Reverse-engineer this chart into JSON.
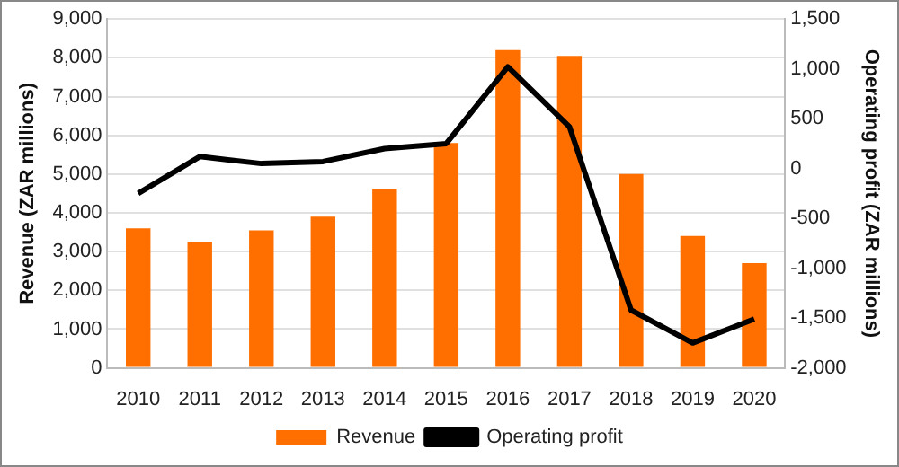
{
  "chart_data": {
    "type": "bar",
    "categories": [
      "2010",
      "2011",
      "2012",
      "2013",
      "2014",
      "2015",
      "2016",
      "2017",
      "2018",
      "2019",
      "2020"
    ],
    "series": [
      {
        "name": "Revenue",
        "color": "#ff6f00",
        "values": [
          3600,
          3250,
          3550,
          3900,
          4600,
          5800,
          8200,
          8050,
          5000,
          3400,
          2700
        ]
      },
      {
        "name": "Operating profit",
        "type": "line",
        "axis": "y2",
        "color": "#000000",
        "values": [
          -250,
          120,
          50,
          70,
          200,
          250,
          1020,
          420,
          -1420,
          -1750,
          -1510
        ]
      }
    ],
    "ylabel": "Revenue (ZAR millions)",
    "y2label": "Operating profit (ZAR millions)",
    "ylim": [
      0,
      9000
    ],
    "yticks": [
      0,
      {
        "value": 1000,
        "label": "1,000"
      },
      {
        "value": 2000,
        "label": "2,000"
      },
      {
        "value": 3000,
        "label": "3,000"
      },
      {
        "value": 4000,
        "label": "4,000"
      },
      {
        "value": 5000,
        "label": "5,000"
      },
      {
        "value": 6000,
        "label": "6,000"
      },
      {
        "value": 7000,
        "label": "7,000"
      },
      {
        "value": 8000,
        "label": "8,000"
      },
      {
        "value": 9000,
        "label": "9,000"
      }
    ],
    "y2lim": [
      -2000,
      1500
    ],
    "y2ticks": [
      {
        "value": -2000,
        "label": "-2,000"
      },
      {
        "value": -1500,
        "label": "-1,500"
      },
      {
        "value": -1000,
        "label": "-1,000"
      },
      -500,
      0,
      500,
      {
        "value": 1000,
        "label": "1,000"
      },
      {
        "value": 1500,
        "label": "1,500"
      }
    ],
    "grid": "y",
    "legend": "bottom",
    "marker": "none",
    "line_style": "solid"
  }
}
